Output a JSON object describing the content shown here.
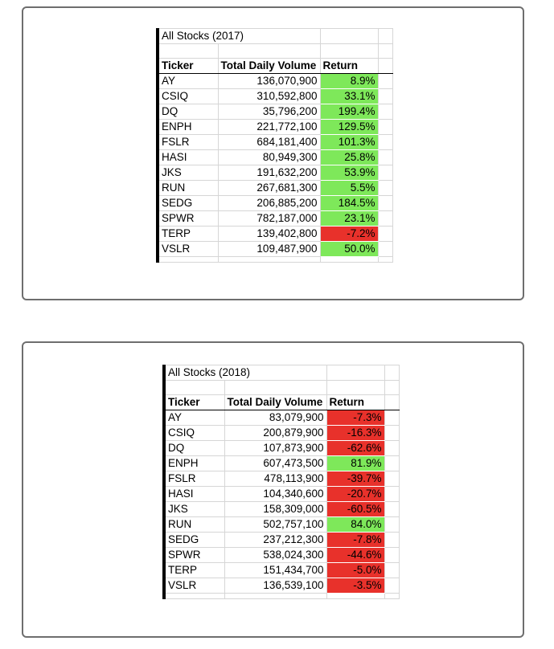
{
  "colors": {
    "positive": "#7ee85a",
    "negative": "#e8312b"
  },
  "headers": {
    "ticker": "Ticker",
    "volume": "Total Daily Volume",
    "return": "Return"
  },
  "sheets": [
    {
      "title": "All Stocks (2017)",
      "rows": [
        {
          "ticker": "AY",
          "volume": "136,070,900",
          "return": "8.9%",
          "positive": true
        },
        {
          "ticker": "CSIQ",
          "volume": "310,592,800",
          "return": "33.1%",
          "positive": true
        },
        {
          "ticker": "DQ",
          "volume": "35,796,200",
          "return": "199.4%",
          "positive": true
        },
        {
          "ticker": "ENPH",
          "volume": "221,772,100",
          "return": "129.5%",
          "positive": true
        },
        {
          "ticker": "FSLR",
          "volume": "684,181,400",
          "return": "101.3%",
          "positive": true
        },
        {
          "ticker": "HASI",
          "volume": "80,949,300",
          "return": "25.8%",
          "positive": true
        },
        {
          "ticker": "JKS",
          "volume": "191,632,200",
          "return": "53.9%",
          "positive": true
        },
        {
          "ticker": "RUN",
          "volume": "267,681,300",
          "return": "5.5%",
          "positive": true
        },
        {
          "ticker": "SEDG",
          "volume": "206,885,200",
          "return": "184.5%",
          "positive": true
        },
        {
          "ticker": "SPWR",
          "volume": "782,187,000",
          "return": "23.1%",
          "positive": true
        },
        {
          "ticker": "TERP",
          "volume": "139,402,800",
          "return": "-7.2%",
          "positive": false
        },
        {
          "ticker": "VSLR",
          "volume": "109,487,900",
          "return": "50.0%",
          "positive": true
        }
      ]
    },
    {
      "title": "All Stocks (2018)",
      "rows": [
        {
          "ticker": "AY",
          "volume": "83,079,900",
          "return": "-7.3%",
          "positive": false
        },
        {
          "ticker": "CSIQ",
          "volume": "200,879,900",
          "return": "-16.3%",
          "positive": false
        },
        {
          "ticker": "DQ",
          "volume": "107,873,900",
          "return": "-62.6%",
          "positive": false
        },
        {
          "ticker": "ENPH",
          "volume": "607,473,500",
          "return": "81.9%",
          "positive": true
        },
        {
          "ticker": "FSLR",
          "volume": "478,113,900",
          "return": "-39.7%",
          "positive": false
        },
        {
          "ticker": "HASI",
          "volume": "104,340,600",
          "return": "-20.7%",
          "positive": false
        },
        {
          "ticker": "JKS",
          "volume": "158,309,000",
          "return": "-60.5%",
          "positive": false
        },
        {
          "ticker": "RUN",
          "volume": "502,757,100",
          "return": "84.0%",
          "positive": true
        },
        {
          "ticker": "SEDG",
          "volume": "237,212,300",
          "return": "-7.8%",
          "positive": false
        },
        {
          "ticker": "SPWR",
          "volume": "538,024,300",
          "return": "-44.6%",
          "positive": false
        },
        {
          "ticker": "TERP",
          "volume": "151,434,700",
          "return": "-5.0%",
          "positive": false
        },
        {
          "ticker": "VSLR",
          "volume": "136,539,100",
          "return": "-3.5%",
          "positive": false
        }
      ]
    }
  ]
}
